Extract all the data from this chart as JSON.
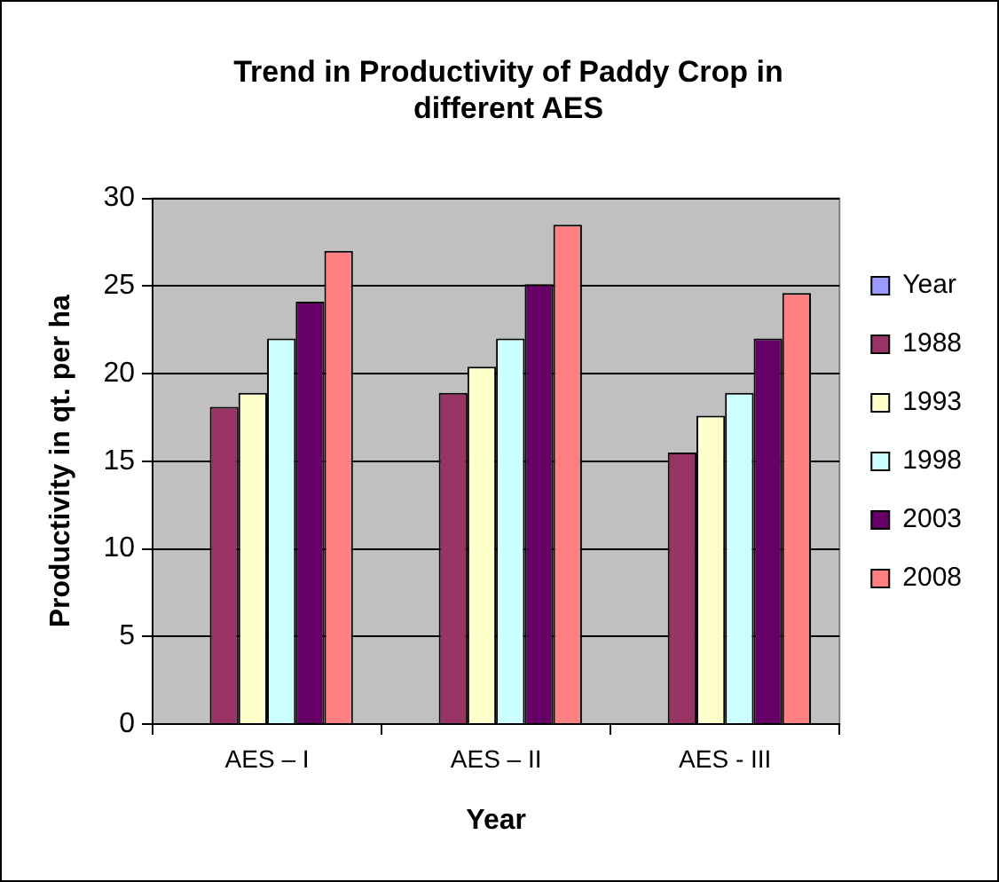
{
  "chart_data": {
    "type": "bar",
    "title": "Trend in Productivity of Paddy Crop in different AES",
    "xlabel": "Year",
    "ylabel": "Productivity in qt. per ha",
    "categories": [
      "AES – I",
      "AES – II",
      "AES - III"
    ],
    "series": [
      {
        "name": "Year",
        "color": "#9999ff",
        "values": [
          null,
          null,
          null
        ]
      },
      {
        "name": "1988",
        "color": "#993366",
        "values": [
          18.1,
          18.9,
          15.5
        ]
      },
      {
        "name": "1993",
        "color": "#ffffcc",
        "values": [
          18.9,
          20.4,
          17.6
        ]
      },
      {
        "name": "1998",
        "color": "#ccffff",
        "values": [
          22.0,
          22.0,
          18.9
        ]
      },
      {
        "name": "2003",
        "color": "#660066",
        "values": [
          24.1,
          25.1,
          22.0
        ]
      },
      {
        "name": "2008",
        "color": "#ff8080",
        "values": [
          27.0,
          28.5,
          24.6
        ]
      }
    ],
    "ylim": [
      0,
      30
    ],
    "yticks": [
      0,
      5,
      10,
      15,
      20,
      25,
      30
    ],
    "grid": "y",
    "legend": "right"
  }
}
